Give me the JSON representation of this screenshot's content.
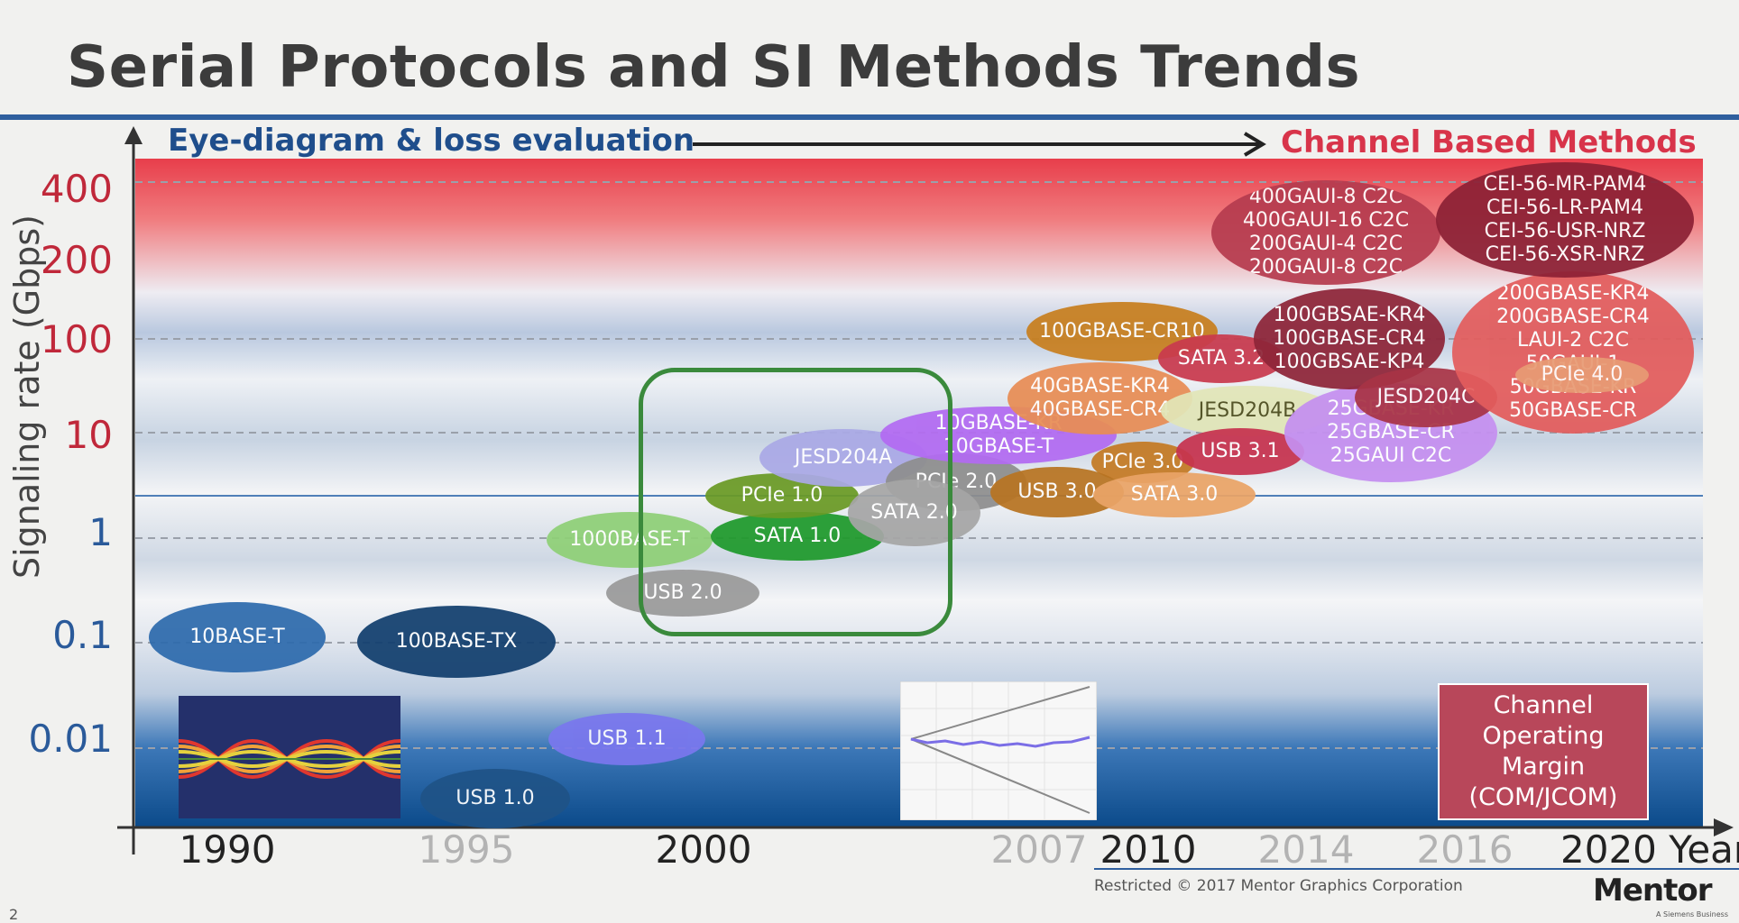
{
  "title": "Serial Protocols and SI Methods Trends",
  "arrow": {
    "left_label": "Eye-diagram & loss evaluation",
    "right_label": "Channel Based Methods"
  },
  "y_axis": {
    "label": "Signaling rate (Gbps)",
    "ticks": [
      "400",
      "200",
      "100",
      "10",
      "1",
      "0.1",
      "0.01"
    ]
  },
  "x_axis": {
    "ticks": [
      "1990",
      "1995",
      "2000",
      "2007",
      "2010",
      "2014",
      "2016",
      "2020 Year"
    ]
  },
  "bubbles": [
    {
      "lines": [
        "10BASE-T"
      ],
      "color": "#2e6bad"
    },
    {
      "lines": [
        "100BASE-TX"
      ],
      "color": "#123f6e"
    },
    {
      "lines": [
        "USB 1.1"
      ],
      "color": "#7a77ee"
    },
    {
      "lines": [
        "USB 1.0"
      ],
      "color": "#1f5387"
    },
    {
      "lines": [
        "USB 2.0"
      ],
      "color": "#9a9a9a"
    },
    {
      "lines": [
        "1000BASE-T"
      ],
      "color": "#8fd077"
    },
    {
      "lines": [
        "SATA 1.0"
      ],
      "color": "#1f9a2c"
    },
    {
      "lines": [
        "PCIe 1.0"
      ],
      "color": "#6a9a25"
    },
    {
      "lines": [
        "JESD204A"
      ],
      "color": "#aaa9e6"
    },
    {
      "lines": [
        "PCIe 2.0"
      ],
      "color": "#8e8e8e"
    },
    {
      "lines": [
        "SATA 2.0"
      ],
      "color": "#a6a6a6"
    },
    {
      "lines": [
        "10GBASE-KR",
        "10GBASE-T"
      ],
      "color": "#b36bf2"
    },
    {
      "lines": [
        "100GBASE-CR10"
      ],
      "color": "#c87f1f"
    },
    {
      "lines": [
        "40GBASE-KR4",
        "40GBASE-CR4"
      ],
      "color": "#e88d55"
    },
    {
      "lines": [
        "PCIe 3.0"
      ],
      "color": "#c47a24"
    },
    {
      "lines": [
        "USB 3.0"
      ],
      "color": "#b87422"
    },
    {
      "lines": [
        "SATA 3.0"
      ],
      "color": "#eaa467"
    },
    {
      "lines": [
        "SATA 3.2"
      ],
      "color": "#c93a4e"
    },
    {
      "lines": [
        "JESD204B"
      ],
      "color": "#e2e6b8",
      "text_color": "#4b4b1b"
    },
    {
      "lines": [
        "USB 3.1"
      ],
      "color": "#c7334f"
    },
    {
      "lines": [
        "25GBASE-KR",
        "25GBASE-CR",
        "25GAUI C2C"
      ],
      "color": "#c58ff0"
    },
    {
      "lines": [
        "100GBSAE-KR4",
        "100GBASE-CR4",
        "100GBSAE-KP4"
      ],
      "color": "#8e2538"
    },
    {
      "lines": [
        "JESD204C"
      ],
      "color": "#a83446"
    },
    {
      "lines": [
        "200GBASE-KR4",
        "200GBASE-CR4",
        "LAUI-2 C2C",
        "50GAUI-1",
        "50GBASE-KR",
        "50GBASE-CR"
      ],
      "color": "#e35c5c"
    },
    {
      "lines": [
        "PCIe 4.0"
      ],
      "color": "#e89b74"
    },
    {
      "lines": [
        "400GAUI-8 C2C",
        "400GAUI-16 C2C",
        "200GAUI-4 C2C",
        "200GAUI-8 C2C"
      ],
      "color": "#b63c4f"
    },
    {
      "lines": [
        "CEI-56-MR-PAM4",
        "CEI-56-LR-PAM4",
        "CEI-56-USR-NRZ",
        "CEI-56-XSR-NRZ"
      ],
      "color": "#8d2135"
    }
  ],
  "com_box": {
    "lines": [
      "Channel",
      "Operating",
      "Margin",
      "(COM/JCOM)"
    ]
  },
  "footer": {
    "copyright": "Restricted © 2017 Mentor Graphics Corporation",
    "brand": "Mentor",
    "brand_sub": "A Siemens Business",
    "page": "2"
  }
}
